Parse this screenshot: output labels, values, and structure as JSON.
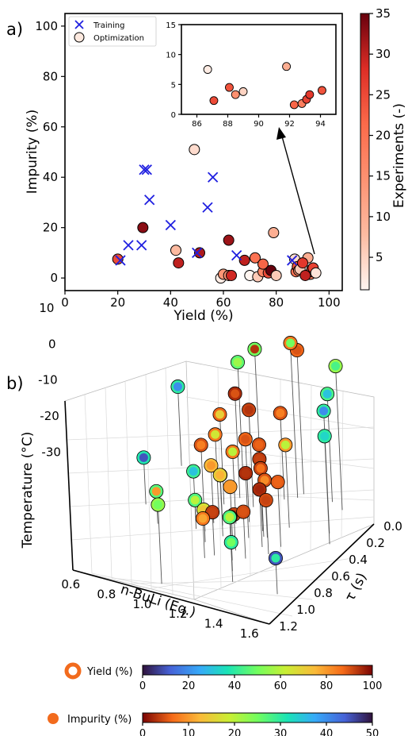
{
  "panel_a_label": "a)",
  "panel_b_label": "b)",
  "chart_data": [
    {
      "type": "scatter",
      "panel": "a",
      "xlabel": "Yield (%)",
      "ylabel": "Impurity (%)",
      "xlim": [
        0,
        105
      ],
      "ylim": [
        -5,
        105
      ],
      "xticks": [
        0,
        20,
        40,
        60,
        80,
        100
      ],
      "yticks": [
        0,
        20,
        40,
        60,
        80,
        100
      ],
      "legend": {
        "placement": "top-left",
        "entries": [
          "Training",
          "Optimization"
        ]
      },
      "colorbar": {
        "label": "Experiments (-)",
        "min": 1,
        "max": 35,
        "ticks": [
          5,
          10,
          15,
          20,
          25,
          30,
          35
        ],
        "cmap": "Reds"
      },
      "series": [
        {
          "name": "Training",
          "marker": "x",
          "color": "#1f1fe0",
          "points": [
            [
              21,
              7
            ],
            [
              24,
              13
            ],
            [
              29,
              13
            ],
            [
              30,
              43
            ],
            [
              31,
              43
            ],
            [
              32,
              31
            ],
            [
              40,
              21
            ],
            [
              50,
              10
            ],
            [
              54,
              28
            ],
            [
              56,
              40
            ],
            [
              65,
              9
            ],
            [
              86,
              7
            ]
          ]
        },
        {
          "name": "Optimization",
          "marker": "circle",
          "points": [
            [
              20,
              7.5,
              25
            ],
            [
              29.5,
              20,
              33
            ],
            [
              42,
              11,
              8
            ],
            [
              43,
              6,
              30
            ],
            [
              49,
              51,
              4
            ],
            [
              51,
              10,
              31
            ],
            [
              59,
              0,
              2
            ],
            [
              60,
              1.5,
              14
            ],
            [
              62,
              1,
              15
            ],
            [
              62,
              15,
              32
            ],
            [
              63,
              1,
              29
            ],
            [
              68,
              7,
              30
            ],
            [
              70,
              1,
              1
            ],
            [
              72,
              8,
              20
            ],
            [
              73,
              0.5,
              6
            ],
            [
              75,
              2.5,
              17
            ],
            [
              75,
              5.5,
              22
            ],
            [
              77,
              2,
              25
            ],
            [
              78,
              3,
              35
            ],
            [
              79,
              18,
              10
            ],
            [
              80,
              1,
              6
            ],
            [
              87,
              7.5,
              4
            ],
            [
              87.5,
              2.5,
              20
            ],
            [
              88,
              4.5,
              24
            ],
            [
              88.5,
              3,
              15
            ],
            [
              89,
              3.5,
              6
            ],
            [
              92,
              8,
              10
            ],
            [
              92.5,
              1.5,
              22
            ],
            [
              93,
              1.5,
              18
            ],
            [
              93.5,
              2.5,
              28
            ],
            [
              93.5,
              3.5,
              27
            ],
            [
              94,
              4,
              26
            ],
            [
              90,
              6,
              27
            ],
            [
              91,
              1,
              30
            ],
            [
              95,
              2,
              3
            ]
          ]
        }
      ],
      "inset": {
        "xlim": [
          85,
          95
        ],
        "ylim": [
          0,
          15
        ],
        "xticks": [
          86,
          88,
          90,
          92,
          94
        ],
        "yticks": [
          0,
          5,
          10,
          15
        ],
        "points": [
          [
            86.7,
            7.5,
            2
          ],
          [
            87.1,
            2.3,
            25
          ],
          [
            88.1,
            4.5,
            24
          ],
          [
            88.5,
            3.3,
            15
          ],
          [
            89.0,
            3.8,
            5
          ],
          [
            91.8,
            8.0,
            10
          ],
          [
            92.3,
            1.6,
            22
          ],
          [
            92.8,
            1.8,
            18
          ],
          [
            93.1,
            2.5,
            26
          ],
          [
            93.3,
            3.3,
            27
          ],
          [
            94.1,
            4.0,
            24
          ]
        ]
      }
    },
    {
      "type": "scatter3d",
      "panel": "b",
      "xlabel": "n-BuLi (Eq.)",
      "ylabel": "τ (s)",
      "zlabel": "Temperature (°C)",
      "xticks": [
        0.6,
        0.8,
        1.0,
        1.2,
        1.4,
        1.6
      ],
      "yticks": [
        0.0,
        0.2,
        0.4,
        0.6,
        0.8,
        1.0,
        1.2
      ],
      "zticks": [
        10,
        0,
        -10,
        -20,
        -30
      ],
      "xlim": [
        0.55,
        1.65
      ],
      "ylim": [
        0,
        1.2
      ],
      "zlim": [
        -35,
        12
      ],
      "points": [
        [
          1.26,
          0.0,
          8,
          88,
          5
        ],
        [
          1.25,
          0.05,
          11,
          85,
          25
        ],
        [
          1.5,
          0.05,
          8,
          55,
          28
        ],
        [
          1.02,
          0.0,
          5,
          50,
          3
        ],
        [
          1.42,
          0.0,
          -2,
          44,
          35
        ],
        [
          0.92,
          0.0,
          0,
          47,
          22
        ],
        [
          0.6,
          0.05,
          -10,
          40,
          40
        ],
        [
          0.62,
          0.5,
          -19,
          38,
          45
        ],
        [
          0.76,
          0.65,
          -23,
          46,
          10
        ],
        [
          1.05,
          1.2,
          -10,
          55,
          25
        ],
        [
          1.55,
          0.3,
          2,
          40,
          40
        ],
        [
          1.6,
          0.4,
          -2,
          40,
          33
        ],
        [
          1.6,
          1.0,
          -22,
          10,
          30
        ],
        [
          0.95,
          0.6,
          -16,
          42,
          35
        ],
        [
          1.35,
          1.0,
          -14,
          45,
          20
        ],
        [
          1.3,
          0.9,
          -24,
          40,
          25
        ],
        [
          0.9,
          0.5,
          -27,
          45,
          20
        ],
        [
          1.0,
          0.2,
          -3,
          95,
          5
        ],
        [
          1.1,
          0.25,
          -5,
          92,
          3
        ],
        [
          1.2,
          0.1,
          -8,
          90,
          8
        ],
        [
          1.15,
          0.4,
          -9,
          88,
          5
        ],
        [
          1.2,
          0.35,
          -11,
          90,
          6
        ],
        [
          1.25,
          0.45,
          -12,
          93,
          4
        ],
        [
          1.1,
          0.45,
          -12,
          85,
          20
        ],
        [
          1.28,
          0.5,
          -13,
          92,
          7
        ],
        [
          1.22,
          0.55,
          -14,
          95,
          3
        ],
        [
          1.3,
          0.5,
          -16,
          90,
          9
        ],
        [
          1.32,
          0.6,
          -16,
          95,
          2
        ],
        [
          1.38,
          0.65,
          -17,
          91,
          4
        ],
        [
          1.4,
          0.55,
          -14,
          89,
          6
        ],
        [
          1.18,
          0.65,
          -16,
          80,
          10
        ],
        [
          1.1,
          0.6,
          -15,
          70,
          12
        ],
        [
          1.05,
          0.5,
          -18,
          88,
          5
        ],
        [
          1.0,
          0.5,
          -16,
          75,
          10
        ],
        [
          1.15,
          0.8,
          -20,
          93,
          4
        ],
        [
          1.25,
          0.8,
          -20,
          90,
          6
        ],
        [
          1.3,
          0.75,
          -19,
          91,
          5
        ],
        [
          1.12,
          0.85,
          -21,
          85,
          11
        ],
        [
          1.05,
          0.7,
          -23,
          65,
          14
        ],
        [
          0.98,
          0.4,
          -10,
          85,
          18
        ],
        [
          0.96,
          0.3,
          -7,
          88,
          15
        ],
        [
          1.0,
          0.6,
          -8,
          90,
          8
        ],
        [
          1.22,
          0.7,
          -22,
          92,
          3
        ],
        [
          1.35,
          0.35,
          -9,
          80,
          20
        ]
      ]
    }
  ],
  "colorbars": {
    "yield": {
      "label": "Yield (%)",
      "min": 0,
      "max": 100,
      "ticks": [
        0,
        20,
        40,
        60,
        80,
        100
      ],
      "cmap": "turbo"
    },
    "impurity": {
      "label": "Impurity (%)",
      "min": 0,
      "max": 50,
      "ticks": [
        0,
        10,
        20,
        30,
        40,
        50
      ],
      "cmap": "turbo_r"
    }
  },
  "colors": {
    "training": "#1f1fe0",
    "stem": "#555555"
  }
}
